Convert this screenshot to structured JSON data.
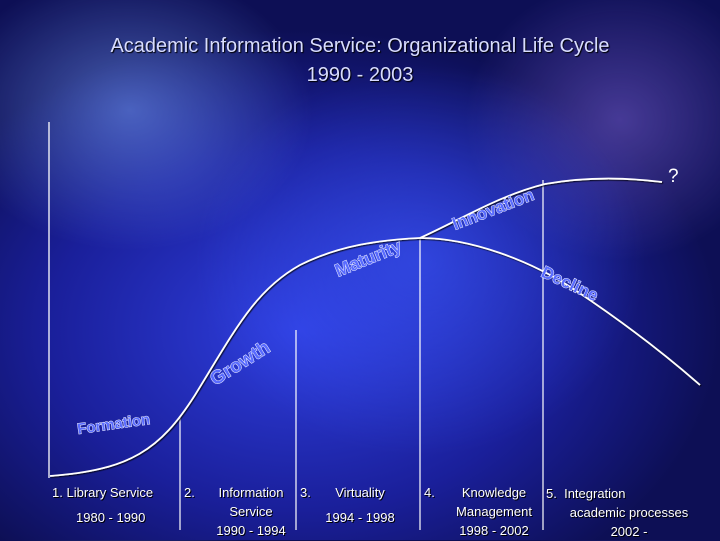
{
  "title": {
    "line1": "Academic Information Service:  Organizational Life Cycle",
    "line2": "1990 - 2003"
  },
  "curve_labels": {
    "formation": "Formation",
    "growth": "Growth",
    "maturity": "Maturity",
    "innovation": "Innovation",
    "decline": "Decline",
    "question": "?"
  },
  "stages": [
    {
      "number": "1.",
      "name": "Library Service",
      "years": "1980 - 1990"
    },
    {
      "number": "2.",
      "name": "Information Service",
      "name_line1": "Information",
      "name_line2": "Service",
      "years": "1990 - 1994"
    },
    {
      "number": "3.",
      "name": "Virtuality",
      "years": "1994 - 1998"
    },
    {
      "number": "4.",
      "name": "Knowledge Management",
      "name_line1": "Knowledge",
      "name_line2": "Management",
      "years": "1998 - 2002"
    },
    {
      "number": "5.",
      "name": "Integration academic processes",
      "name_line1": "Integration",
      "name_line2": "academic processes",
      "years": "2002 -"
    }
  ],
  "colors": {
    "curve": "#ffffff",
    "curve_label_fill": "#5a6cff",
    "curve_label_stroke": "#ffffff"
  }
}
